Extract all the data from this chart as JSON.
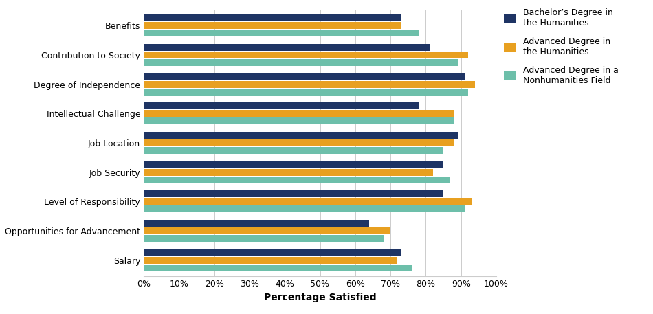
{
  "categories": [
    "Benefits",
    "Contribution to Society",
    "Degree of Independence",
    "Intellectual Challenge",
    "Job Location",
    "Job Security",
    "Level of Responsibility",
    "Opportunities for Advancement",
    "Salary"
  ],
  "series_names": [
    "Bachelor’s Degree in\nthe Humanities",
    "Advanced Degree in\nthe Humanities",
    "Advanced Degree in a\nNonhumanities Field"
  ],
  "series_values": [
    [
      73,
      81,
      91,
      78,
      89,
      85,
      85,
      64,
      73
    ],
    [
      73,
      92,
      94,
      88,
      88,
      82,
      93,
      70,
      72
    ],
    [
      78,
      89,
      92,
      88,
      85,
      87,
      91,
      68,
      76
    ]
  ],
  "colors": [
    "#1e3464",
    "#e8a020",
    "#6dbfaa"
  ],
  "xlabel": "Percentage Satisfied",
  "xlim": [
    0,
    100
  ],
  "xticks": [
    0,
    10,
    20,
    30,
    40,
    50,
    60,
    70,
    80,
    90,
    100
  ],
  "xtick_labels": [
    "0%",
    "10%",
    "20%",
    "30%",
    "40%",
    "50%",
    "60%",
    "70%",
    "80%",
    "90%",
    "100%"
  ],
  "bar_height": 0.26,
  "background_color": "#ffffff"
}
